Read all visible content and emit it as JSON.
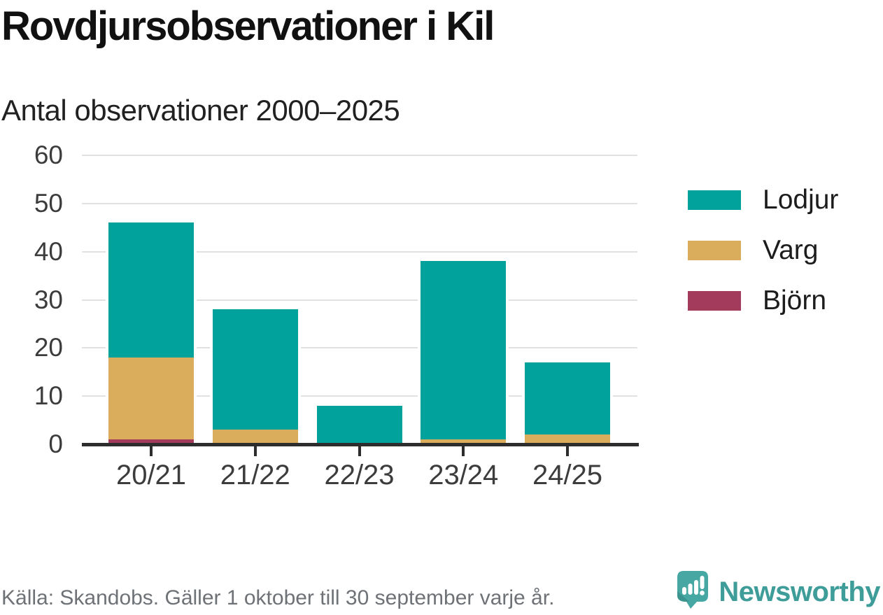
{
  "header": {
    "title": "Rovdjursobservationer i Kil",
    "subtitle": "Antal observationer 2000–2025"
  },
  "chart_data": {
    "type": "bar",
    "stacked": true,
    "title": "Rovdjursobservationer i Kil",
    "subtitle": "Antal observationer 2000–2025",
    "xlabel": "",
    "ylabel": "",
    "categories": [
      "20/21",
      "21/22",
      "22/23",
      "23/24",
      "24/25"
    ],
    "series": [
      {
        "name": "Lodjur",
        "color": "#00A29B",
        "values": [
          28,
          25,
          8,
          37,
          15
        ]
      },
      {
        "name": "Varg",
        "color": "#DAAD5C",
        "values": [
          17,
          3,
          0,
          1,
          2
        ]
      },
      {
        "name": "Björn",
        "color": "#A33B5C",
        "values": [
          1,
          0,
          0,
          0,
          0
        ]
      }
    ],
    "totals": [
      46,
      28,
      8,
      38,
      17
    ],
    "ylim": [
      0,
      60
    ],
    "yticks": [
      0,
      10,
      20,
      30,
      40,
      50,
      60
    ],
    "grid": true,
    "legend_position": "right"
  },
  "footer": {
    "source": "Källa: Skandobs. Gäller 1 oktober till 30 september varje år.",
    "brand": "Newsworthy"
  },
  "colors": {
    "lodjur": "#00A29B",
    "varg": "#DAAD5C",
    "bjorn": "#A33B5C",
    "axis": "#2d2d2d",
    "gridline": "#e1e1e1",
    "brand_teal": "#3e9d99",
    "logo_bubble": "#47a7a2"
  }
}
